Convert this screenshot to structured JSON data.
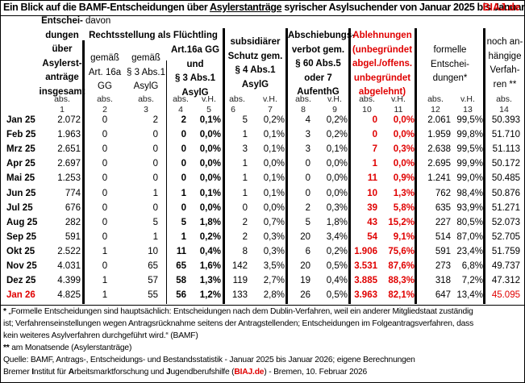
{
  "title": {
    "prefix": "Ein Blick auf die BAMF-Entscheidungen über ",
    "underlined": "Asylerstanträge",
    "suffix": " syrischer Asylsuchender von Januar 2025 bis Januar 2026",
    "brand": "BIAJ.de"
  },
  "header": {
    "davon": "davon",
    "col1": [
      "Entschei-",
      "dungen",
      "über",
      "Asylerst-",
      "anträge",
      "insgesamt"
    ],
    "group_fluechtling": "Rechtsstellung als Flüchtling",
    "col2": [
      "gemäß",
      "Art. 16a",
      "GG"
    ],
    "col3": [
      "gemäß",
      "§ 3 Abs.1",
      "AsylG"
    ],
    "col45": [
      "Art.16a GG",
      "und",
      "§ 3 Abs.1",
      "AsylG"
    ],
    "col67": [
      "subsidiärer",
      "Schutz gem.",
      "§ 4 Abs.1",
      "AsylG"
    ],
    "col89": [
      "Abschiebungs-",
      "verbot gem.",
      "§ 60 Abs.5",
      "oder 7",
      "AufenthG"
    ],
    "col1011": [
      "Ablehnungen",
      "(unbegründet",
      "abgel./offens.",
      "unbegründet",
      "abgelehnt)"
    ],
    "col1213": [
      "formelle",
      "Entschei-",
      "dungen*"
    ],
    "col14": [
      "noch an-",
      "hängige",
      "Verfah-",
      "ren **"
    ],
    "units": [
      "abs.",
      "abs.",
      "abs.",
      "abs.",
      "v.H.",
      "abs.",
      "v.H.",
      "abs.",
      "v.H.",
      "abs.",
      "v.H.",
      "abs.",
      "v.H.",
      "abs."
    ],
    "numbers": [
      "1",
      "2",
      "3",
      "4",
      "5",
      "6",
      "7",
      "8",
      "9",
      "10",
      "11",
      "12",
      "13",
      "14"
    ]
  },
  "rows": [
    {
      "month": "Jan 25",
      "c1": "2.072",
      "c2": "0",
      "c3": "2",
      "c4": "2",
      "c5": "0,1%",
      "c6": "5",
      "c7": "0,2%",
      "c8": "4",
      "c9": "0,2%",
      "c10": "0",
      "c11": "0,0%",
      "c12": "2.061",
      "c13": "99,5%",
      "c14": "50.393"
    },
    {
      "month": "Feb 25",
      "c1": "1.963",
      "c2": "0",
      "c3": "0",
      "c4": "0",
      "c5": "0,0%",
      "c6": "1",
      "c7": "0,1%",
      "c8": "3",
      "c9": "0,2%",
      "c10": "0",
      "c11": "0,0%",
      "c12": "1.959",
      "c13": "99,8%",
      "c14": "51.710"
    },
    {
      "month": "Mrz 25",
      "c1": "2.651",
      "c2": "0",
      "c3": "0",
      "c4": "0",
      "c5": "0,0%",
      "c6": "3",
      "c7": "0,1%",
      "c8": "3",
      "c9": "0,1%",
      "c10": "7",
      "c11": "0,3%",
      "c12": "2.638",
      "c13": "99,5%",
      "c14": "51.113"
    },
    {
      "month": "Apr 25",
      "c1": "2.697",
      "c2": "0",
      "c3": "0",
      "c4": "0",
      "c5": "0,0%",
      "c6": "1",
      "c7": "0,0%",
      "c8": "0",
      "c9": "0,0%",
      "c10": "1",
      "c11": "0,0%",
      "c12": "2.695",
      "c13": "99,9%",
      "c14": "50.172"
    },
    {
      "month": "Mai 25",
      "c1": "1.253",
      "c2": "0",
      "c3": "0",
      "c4": "0",
      "c5": "0,0%",
      "c6": "1",
      "c7": "0,1%",
      "c8": "0",
      "c9": "0,0%",
      "c10": "11",
      "c11": "0,9%",
      "c12": "1.241",
      "c13": "99,0%",
      "c14": "50.485"
    },
    {
      "month": "Jun 25",
      "c1": "774",
      "c2": "0",
      "c3": "1",
      "c4": "1",
      "c5": "0,1%",
      "c6": "1",
      "c7": "0,1%",
      "c8": "0",
      "c9": "0,0%",
      "c10": "10",
      "c11": "1,3%",
      "c12": "762",
      "c13": "98,4%",
      "c14": "50.876"
    },
    {
      "month": "Jul 25",
      "c1": "676",
      "c2": "0",
      "c3": "0",
      "c4": "0",
      "c5": "0,0%",
      "c6": "0",
      "c7": "0,0%",
      "c8": "2",
      "c9": "0,3%",
      "c10": "39",
      "c11": "5,8%",
      "c12": "635",
      "c13": "93,9%",
      "c14": "51.271"
    },
    {
      "month": "Aug 25",
      "c1": "282",
      "c2": "0",
      "c3": "5",
      "c4": "5",
      "c5": "1,8%",
      "c6": "2",
      "c7": "0,7%",
      "c8": "5",
      "c9": "1,8%",
      "c10": "43",
      "c11": "15,2%",
      "c12": "227",
      "c13": "80,5%",
      "c14": "52.073"
    },
    {
      "month": "Sep 25",
      "c1": "591",
      "c2": "0",
      "c3": "1",
      "c4": "1",
      "c5": "0,2%",
      "c6": "2",
      "c7": "0,3%",
      "c8": "20",
      "c9": "3,4%",
      "c10": "54",
      "c11": "9,1%",
      "c12": "514",
      "c13": "87,0%",
      "c14": "52.705"
    },
    {
      "month": "Okt 25",
      "c1": "2.522",
      "c2": "1",
      "c3": "10",
      "c4": "11",
      "c5": "0,4%",
      "c6": "8",
      "c7": "0,3%",
      "c8": "6",
      "c9": "0,2%",
      "c10": "1.906",
      "c11": "75,6%",
      "c12": "591",
      "c13": "23,4%",
      "c14": "51.759"
    },
    {
      "month": "Nov 25",
      "c1": "4.031",
      "c2": "0",
      "c3": "65",
      "c4": "65",
      "c5": "1,6%",
      "c6": "142",
      "c7": "3,5%",
      "c8": "20",
      "c9": "0,5%",
      "c10": "3.531",
      "c11": "87,6%",
      "c12": "273",
      "c13": "6,8%",
      "c14": "49.737"
    },
    {
      "month": "Dez 25",
      "c1": "4.399",
      "c2": "1",
      "c3": "57",
      "c4": "58",
      "c5": "1,3%",
      "c6": "119",
      "c7": "2,7%",
      "c8": "19",
      "c9": "0,4%",
      "c10": "3.885",
      "c11": "88,3%",
      "c12": "318",
      "c13": "7,2%",
      "c14": "47.312"
    },
    {
      "month": "Jan 26",
      "c1": "4.825",
      "c2": "1",
      "c3": "55",
      "c4": "56",
      "c5": "1,2%",
      "c6": "133",
      "c7": "2,8%",
      "c8": "26",
      "c9": "0,5%",
      "c10": "3.963",
      "c11": "82,1%",
      "c12": "647",
      "c13": "13,4%",
      "c14": "45.095"
    }
  ],
  "footnotes": {
    "star1_mark": "*",
    "star1_line1": " „Formelle Entscheidungen sind hauptsächlich: Entscheidungen nach dem Dublin-Verfahren, weil ein anderer Mitgliedstaat zuständig",
    "star1_line2": "ist; Verfahrenseinstellungen wegen Antragsrücknahme seitens der Antragstellenden; Entscheidungen im Folgeantragsverfahren, dass",
    "star1_line3": "kein weiteres Asylverfahren durchgeführt wird.“ (BAMF)",
    "star2_mark": "**",
    "star2_text": " am Monatsende (Asylerstanträge)",
    "source": "Quelle: BAMF, Antrags-, Entscheidungs- und Bestandsstatistik - Januar 2025 bis Januar 2026; eigene Berechnungen",
    "inst_1": "Bremer ",
    "inst_2": "I",
    "inst_3": "nstitut für ",
    "inst_4": "A",
    "inst_5": "rbeitsmarktforschung und ",
    "inst_6": "J",
    "inst_7": "ugendberufshilfe (",
    "inst_brand": "BIAJ.de",
    "inst_8": ") - Bremen, 10. Februar 2026"
  }
}
